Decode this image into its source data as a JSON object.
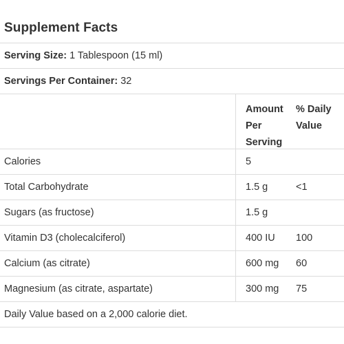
{
  "title": "Supplement Facts",
  "serving_size": {
    "label": "Serving Size:",
    "value": "1 Tablespoon (15 ml)"
  },
  "servings_per_container": {
    "label": "Servings Per Container:",
    "value": "32"
  },
  "columns": {
    "amount": "Amount Per Serving",
    "daily_value": "% Daily Value"
  },
  "nutrients": [
    {
      "name": "Calories",
      "amount": "5",
      "dv": ""
    },
    {
      "name": "Total Carbohydrate",
      "amount": "1.5 g",
      "dv": "<1"
    },
    {
      "name": "Sugars (as fructose)",
      "amount": "1.5 g",
      "dv": ""
    },
    {
      "name": "Vitamin D3 (cholecalciferol)",
      "amount": "400 IU",
      "dv": "100"
    },
    {
      "name": "Calcium (as citrate)",
      "amount": "600 mg",
      "dv": "60"
    },
    {
      "name": "Magnesium (as citrate, aspartate)",
      "amount": "300 mg",
      "dv": "75"
    }
  ],
  "footer": "Daily Value based on a 2,000 calorie diet."
}
